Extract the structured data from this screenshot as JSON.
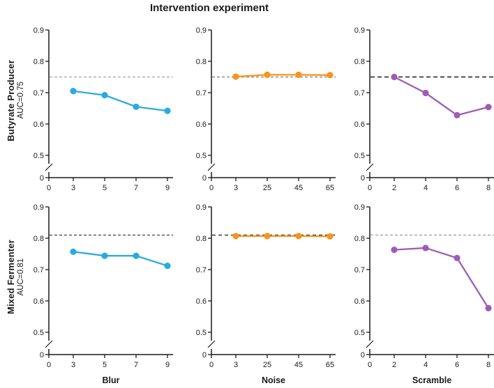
{
  "title": "Intervention experiment",
  "rows": [
    {
      "label": "Butyrate Producer",
      "auc_label": "AUC=0.75",
      "auc_value": 0.75
    },
    {
      "label": "Mixed Fermenter",
      "auc_label": "AUC=0.81",
      "auc_value": 0.81
    }
  ],
  "axis": {
    "y_ticks": [
      "0.9",
      "0.8",
      "0.7",
      "0.6",
      "0.5",
      "0"
    ],
    "y_break": true,
    "ylim_shown": [
      0.5,
      0.9
    ],
    "axis_color": "#1a1a1a"
  },
  "colors": {
    "blur": "#29abe2",
    "noise": "#f7941d",
    "scramble": "#9e5db3"
  },
  "chart_data": [
    {
      "type": "line",
      "row": 0,
      "col": 0,
      "series": "Blur",
      "group": "Butyrate Producer",
      "color": "#29abe2",
      "baseline": 0.75,
      "baseline_color": "#b0b0b0",
      "baseline_dash": "4,3",
      "x_ticks": [
        "0",
        "3",
        "5",
        "7",
        "9"
      ],
      "x": [
        3,
        5,
        7,
        9
      ],
      "y": [
        0.705,
        0.692,
        0.655,
        0.642
      ],
      "xlabel": ""
    },
    {
      "type": "line",
      "row": 0,
      "col": 1,
      "series": "Noise",
      "group": "Butyrate Producer",
      "color": "#f7941d",
      "baseline": 0.75,
      "baseline_color": "#8c8c8c",
      "baseline_dash": "4,3",
      "x_ticks": [
        "0",
        "3",
        "25",
        "45",
        "65"
      ],
      "x": [
        3,
        25,
        45,
        65
      ],
      "y": [
        0.751,
        0.757,
        0.757,
        0.756
      ],
      "xlabel": ""
    },
    {
      "type": "line",
      "row": 0,
      "col": 2,
      "series": "Scramble",
      "group": "Butyrate Producer",
      "color": "#9e5db3",
      "baseline": 0.75,
      "baseline_color": "#1a1a1a",
      "baseline_dash": "6,4",
      "x_ticks": [
        "0",
        "2",
        "4",
        "6",
        "8"
      ],
      "x": [
        2,
        4,
        6,
        8
      ],
      "y": [
        0.75,
        0.699,
        0.628,
        0.654
      ],
      "xlabel": ""
    },
    {
      "type": "line",
      "row": 1,
      "col": 0,
      "series": "Blur",
      "group": "Mixed Fermenter",
      "color": "#29abe2",
      "baseline": 0.81,
      "baseline_color": "#595959",
      "baseline_dash": "4,3",
      "x_ticks": [
        "0",
        "3",
        "5",
        "7",
        "9"
      ],
      "x": [
        3,
        5,
        7,
        9
      ],
      "y": [
        0.757,
        0.744,
        0.744,
        0.712
      ],
      "xlabel": "Blur"
    },
    {
      "type": "line",
      "row": 1,
      "col": 1,
      "series": "Noise",
      "group": "Mixed Fermenter",
      "color": "#f7941d",
      "baseline": 0.81,
      "baseline_color": "#3a3a3a",
      "baseline_dash": "5,4",
      "x_ticks": [
        "0",
        "3",
        "25",
        "45",
        "65"
      ],
      "x": [
        3,
        25,
        45,
        65
      ],
      "y": [
        0.807,
        0.807,
        0.807,
        0.806
      ],
      "xlabel": "Noise"
    },
    {
      "type": "line",
      "row": 1,
      "col": 2,
      "series": "Scramble",
      "group": "Mixed Fermenter",
      "color": "#9e5db3",
      "baseline": 0.81,
      "baseline_color": "#a8a8a8",
      "baseline_dash": "4,3",
      "x_ticks": [
        "0",
        "2",
        "4",
        "6",
        "8"
      ],
      "x": [
        2,
        4,
        6,
        8
      ],
      "y": [
        0.763,
        0.769,
        0.737,
        0.577
      ],
      "xlabel": "Scramble"
    }
  ]
}
